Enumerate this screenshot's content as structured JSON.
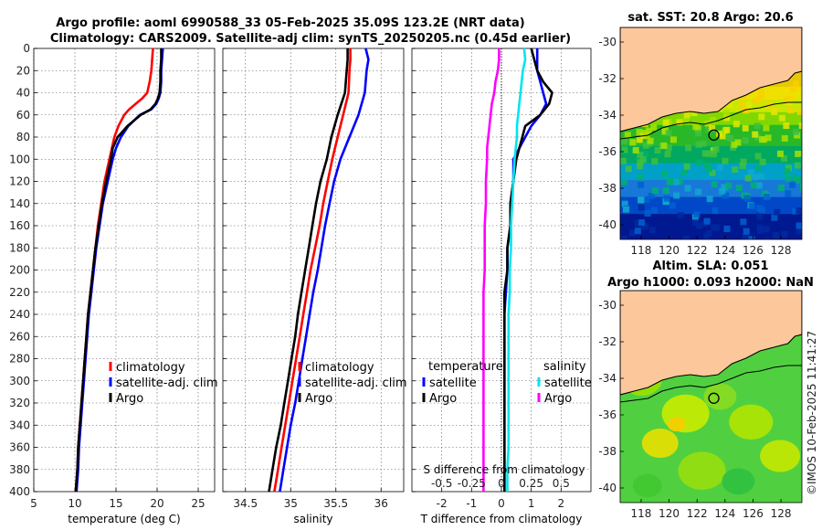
{
  "titles": {
    "line1": "Argo profile: aoml 6990588_33 05-Feb-2025 35.09S 123.2E (NRT data)",
    "line2": "Climatology: CARS2009. Satellite-adj clim: synTS_20250205.nc (0.45d earlier)"
  },
  "depth_ticks": [
    "0",
    "20",
    "40",
    "60",
    "80",
    "100",
    "120",
    "140",
    "160",
    "180",
    "200",
    "220",
    "240",
    "260",
    "280",
    "300",
    "320",
    "340",
    "360",
    "380",
    "400"
  ],
  "map_sst": {
    "title": "sat. SST: 20.8 Argo: 20.6"
  },
  "map_sla": {
    "title1": "Altim. SLA: 0.051",
    "title2": "Argo h1000: 0.093 h2000: NaN"
  },
  "map_axes": {
    "lat_ticks": [
      "-30",
      "-32",
      "-34",
      "-36",
      "-38",
      "-40"
    ],
    "lon_ticks": [
      "118",
      "120",
      "122",
      "124",
      "126",
      "128"
    ]
  },
  "watermark": "©IMOS 10-Feb-2025 11:41:27",
  "colors": {
    "clim": "#ff0000",
    "sat": "#0000ff",
    "argo": "#000000",
    "sal_diff": "#00e5ee",
    "temp_diff": "#ff00ff",
    "land": "#fcc89b"
  },
  "chart_data": [
    {
      "type": "line",
      "name": "temperature",
      "xlabel": "temperature (deg C)",
      "ylabel": "depth",
      "xlim": [
        5,
        27
      ],
      "ylim": [
        0,
        400
      ],
      "x_ticks": [
        "5",
        "10",
        "15",
        "20",
        "25"
      ],
      "legend": [
        "climatology",
        "satellite-adj. clim",
        "Argo"
      ],
      "depth": [
        0,
        10,
        20,
        30,
        40,
        45,
        50,
        55,
        60,
        70,
        80,
        90,
        100,
        120,
        140,
        160,
        180,
        200,
        220,
        240,
        260,
        280,
        300,
        320,
        340,
        360,
        380,
        400
      ],
      "series": [
        {
          "name": "climatology",
          "color": "#ff0000",
          "values": [
            19.5,
            19.4,
            19.3,
            19.1,
            18.8,
            18.2,
            17.4,
            16.6,
            16.0,
            15.3,
            14.8,
            14.5,
            14.2,
            13.6,
            13.2,
            12.8,
            12.5,
            12.2,
            11.9,
            11.6,
            11.4,
            11.2,
            11.0,
            10.8,
            10.6,
            10.4,
            10.3,
            10.1
          ]
        },
        {
          "name": "satellite-adj. clim",
          "color": "#0000ff",
          "values": [
            20.7,
            20.6,
            20.5,
            20.5,
            20.4,
            20.2,
            19.9,
            19.3,
            17.9,
            16.5,
            15.6,
            15.0,
            14.6,
            14.0,
            13.4,
            13.0,
            12.6,
            12.3,
            12.0,
            11.7,
            11.5,
            11.3,
            11.1,
            10.9,
            10.7,
            10.5,
            10.4,
            10.2
          ]
        },
        {
          "name": "Argo",
          "color": "#000000",
          "values": [
            20.5,
            20.5,
            20.4,
            20.4,
            20.3,
            20.1,
            19.8,
            19.2,
            18.0,
            16.4,
            15.2,
            14.6,
            14.4,
            13.8,
            13.3,
            12.9,
            12.5,
            12.2,
            11.9,
            11.6,
            11.4,
            11.2,
            11.0,
            10.8,
            10.6,
            10.4,
            10.3,
            10.1
          ]
        }
      ]
    },
    {
      "type": "line",
      "name": "salinity",
      "xlabel": "salinity",
      "ylabel": "depth",
      "xlim": [
        34.25,
        36.25
      ],
      "ylim": [
        0,
        400
      ],
      "x_ticks": [
        "34.5",
        "35",
        "35.5",
        "36"
      ],
      "legend": [
        "climatology",
        "satellite-adj. clim",
        "Argo"
      ],
      "depth": [
        0,
        10,
        20,
        40,
        60,
        80,
        100,
        120,
        140,
        160,
        180,
        200,
        220,
        240,
        260,
        280,
        300,
        320,
        340,
        360,
        380,
        400
      ],
      "series": [
        {
          "name": "climatology",
          "color": "#ff0000",
          "values": [
            35.66,
            35.66,
            35.65,
            35.64,
            35.58,
            35.52,
            35.46,
            35.41,
            35.36,
            35.32,
            35.27,
            35.22,
            35.18,
            35.14,
            35.1,
            35.06,
            35.02,
            34.98,
            34.94,
            34.9,
            34.86,
            34.82
          ]
        },
        {
          "name": "satellite-adj. clim",
          "color": "#0000ff",
          "values": [
            35.83,
            35.86,
            35.84,
            35.82,
            35.75,
            35.65,
            35.55,
            35.48,
            35.43,
            35.38,
            35.34,
            35.3,
            35.25,
            35.21,
            35.17,
            35.13,
            35.09,
            35.05,
            35.0,
            34.96,
            34.92,
            34.88
          ]
        },
        {
          "name": "Argo",
          "color": "#000000",
          "values": [
            35.63,
            35.63,
            35.62,
            35.6,
            35.52,
            35.45,
            35.4,
            35.33,
            35.28,
            35.24,
            35.2,
            35.16,
            35.12,
            35.08,
            35.05,
            35.01,
            34.97,
            34.93,
            34.89,
            34.84,
            34.8,
            34.76
          ]
        }
      ]
    },
    {
      "type": "line",
      "name": "differences",
      "xlabel": "T difference from climatology",
      "ylabel": "depth",
      "xlim": [
        -3,
        3
      ],
      "ylim": [
        0,
        400
      ],
      "x_ticks": [
        "-2",
        "-1",
        "0",
        "1",
        "2"
      ],
      "top_xlabel": "S difference from climatology",
      "top_ticks": [
        "-0.5",
        "-0.25",
        "0",
        "0.25",
        "0.5"
      ],
      "legend_temperature": {
        "heading": "temperature",
        "items": [
          "satellite",
          "Argo"
        ]
      },
      "legend_salinity": {
        "heading": "salinity",
        "items": [
          "satellite",
          "Argo"
        ]
      },
      "depth": [
        0,
        10,
        20,
        30,
        40,
        50,
        60,
        70,
        80,
        90,
        100,
        120,
        140,
        160,
        180,
        200,
        220,
        240,
        260,
        280,
        300,
        320,
        340,
        360,
        380,
        400
      ],
      "series": [
        {
          "name": "temperature satellite",
          "color": "#0000ff",
          "values": [
            1.2,
            1.2,
            1.2,
            1.3,
            1.4,
            1.5,
            1.3,
            1.0,
            0.8,
            0.6,
            0.4,
            0.4,
            0.3,
            0.3,
            0.2,
            0.2,
            0.15,
            0.1,
            0.1,
            0.1,
            0.1,
            0.1,
            0.1,
            0.1,
            0.1,
            0.1
          ]
        },
        {
          "name": "temperature Argo",
          "color": "#000000",
          "values": [
            1.0,
            1.1,
            1.2,
            1.4,
            1.7,
            1.6,
            1.3,
            0.8,
            0.7,
            0.6,
            0.5,
            0.4,
            0.3,
            0.3,
            0.2,
            0.2,
            0.1,
            0.1,
            0.1,
            0.1,
            0.1,
            0.1,
            0.1,
            0.1,
            0.1,
            0.1
          ]
        },
        {
          "name": "salinity satellite",
          "color": "#00e5ee",
          "values": [
            0.19,
            0.2,
            0.18,
            0.17,
            0.16,
            0.15,
            0.14,
            0.13,
            0.13,
            0.12,
            0.11,
            0.1,
            0.09,
            0.08,
            0.08,
            0.07,
            0.07,
            0.06,
            0.06,
            0.06,
            0.06,
            0.06,
            0.06,
            0.06,
            0.05,
            0.05
          ]
        },
        {
          "name": "salinity Argo",
          "color": "#ff00ff",
          "values": [
            -0.02,
            -0.02,
            -0.03,
            -0.05,
            -0.06,
            -0.08,
            -0.09,
            -0.1,
            -0.11,
            -0.12,
            -0.12,
            -0.13,
            -0.13,
            -0.14,
            -0.14,
            -0.14,
            -0.15,
            -0.15,
            -0.15,
            -0.15,
            -0.15,
            -0.15,
            -0.15,
            -0.15,
            -0.15,
            -0.15
          ]
        }
      ]
    }
  ]
}
